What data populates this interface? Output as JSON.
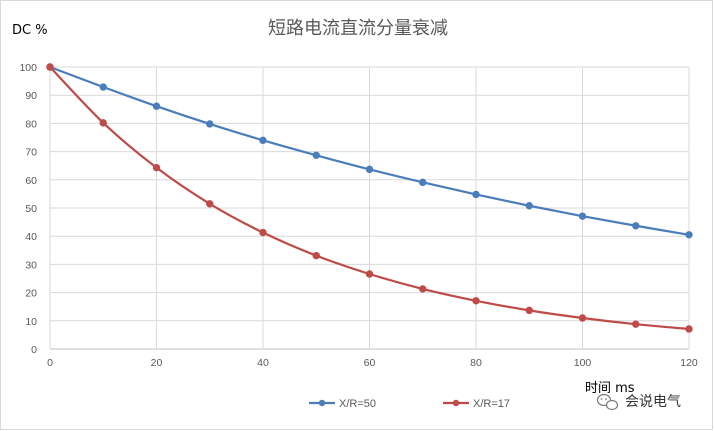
{
  "chart_data": {
    "type": "line",
    "title": "短路电流直流分量衰减",
    "ylabel": "DC %",
    "xlabel": "时间 ms",
    "xlim": [
      0,
      120
    ],
    "ylim": [
      0,
      100
    ],
    "x_ticks": [
      "0",
      "20",
      "40",
      "60",
      "80",
      "100",
      "120"
    ],
    "y_ticks": [
      "0",
      "10",
      "20",
      "30",
      "40",
      "50",
      "60",
      "70",
      "80",
      "90",
      "100"
    ],
    "grid": true,
    "legend_position": "bottom",
    "x": [
      0,
      10,
      20,
      30,
      40,
      50,
      60,
      70,
      80,
      90,
      100,
      110,
      120
    ],
    "series": [
      {
        "name": "X/R=50",
        "color": "#4a7ebb",
        "values": [
          100,
          92.9,
          86.1,
          79.8,
          74.0,
          68.7,
          63.7,
          59.1,
          54.8,
          50.8,
          47.1,
          43.7,
          40.5
        ]
      },
      {
        "name": "X/R=17",
        "color": "#be4b48",
        "values": [
          100,
          80.2,
          64.3,
          51.5,
          41.3,
          33.1,
          26.6,
          21.3,
          17.1,
          13.7,
          11.0,
          8.8,
          7.1
        ]
      }
    ]
  },
  "watermark": {
    "text": "会说电气",
    "icon": "wechat-icon"
  }
}
